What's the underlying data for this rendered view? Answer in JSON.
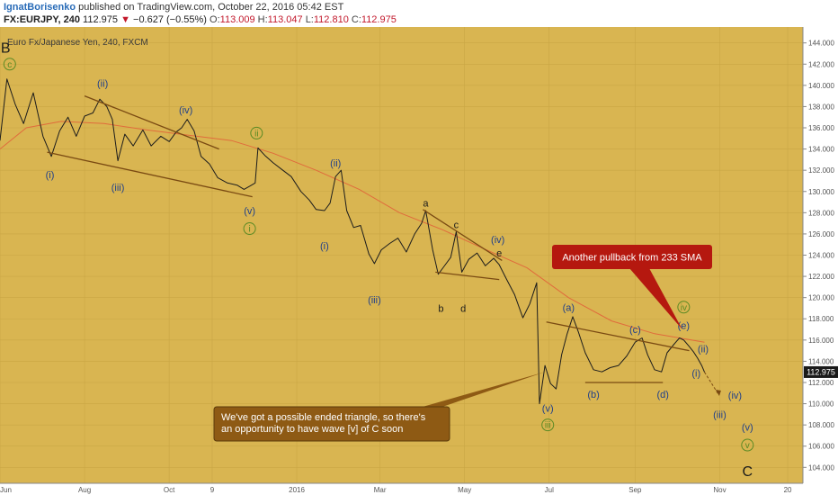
{
  "header": {
    "author": "IgnatBorisenko",
    "published": " published on TradingView.com, October 22, 2016 05:42 EST",
    "symbol": "FX:EURJPY, 240",
    "last": "112.975",
    "arrow": "▼",
    "change": "−0.627 (−0.55%)",
    "o_label": "O:",
    "o": "113.009",
    "h_label": "H:",
    "h": "113.047",
    "l_label": "L:",
    "l": "112.810",
    "c_label": "C:",
    "c": "112.975"
  },
  "colors": {
    "background": "#d9b551",
    "price_line": "#1c1c1c",
    "sma": "#e06b3c",
    "trendline": "#7a4a12",
    "wave_blue": "#1f3f8a",
    "wave_green": "#5a8a24",
    "callout_red": "#b5180f",
    "callout_brown": "#8e5a14"
  },
  "chart_data": {
    "type": "line",
    "title": "Euro Fx/Japanese Yen, 240, FXCM",
    "ylim": [
      102.5,
      145.5
    ],
    "yticks": [
      "144.000",
      "142.000",
      "140.000",
      "138.000",
      "136.000",
      "134.000",
      "132.000",
      "130.000",
      "128.000",
      "126.000",
      "124.000",
      "122.000",
      "120.000",
      "118.000",
      "116.000",
      "114.000",
      "112.000",
      "110.000",
      "108.000",
      "106.000",
      "104.000"
    ],
    "last_price_label": "112.975",
    "xlim": [
      "2015-06-01",
      "2016-12-31"
    ],
    "xticks": [
      {
        "date": "2015-06-01",
        "label": "Jun"
      },
      {
        "date": "2015-08-01",
        "label": "Aug"
      },
      {
        "date": "2015-10-01",
        "label": "Oct"
      },
      {
        "date": "2015-11-01",
        "label": "9"
      },
      {
        "date": "2016-01-01",
        "label": "2016"
      },
      {
        "date": "2016-03-01",
        "label": "Mar"
      },
      {
        "date": "2016-05-01",
        "label": "May"
      },
      {
        "date": "2016-07-01",
        "label": "Jul"
      },
      {
        "date": "2016-09-01",
        "label": "Sep"
      },
      {
        "date": "2016-11-01",
        "label": "Nov"
      },
      {
        "date": "2016-12-20",
        "label": "20"
      }
    ],
    "series": [
      {
        "type": "price",
        "points": [
          [
            "2015-06-01",
            134.8
          ],
          [
            "2015-06-06",
            140.6
          ],
          [
            "2015-06-12",
            138.2
          ],
          [
            "2015-06-18",
            136.4
          ],
          [
            "2015-06-25",
            139.3
          ],
          [
            "2015-07-02",
            135.2
          ],
          [
            "2015-07-08",
            133.3
          ],
          [
            "2015-07-14",
            135.7
          ],
          [
            "2015-07-20",
            137.0
          ],
          [
            "2015-07-26",
            135.2
          ],
          [
            "2015-08-01",
            137.1
          ],
          [
            "2015-08-07",
            137.4
          ],
          [
            "2015-08-12",
            138.7
          ],
          [
            "2015-08-17",
            138.0
          ],
          [
            "2015-08-21",
            136.8
          ],
          [
            "2015-08-25",
            132.9
          ],
          [
            "2015-08-30",
            135.4
          ],
          [
            "2015-09-05",
            134.3
          ],
          [
            "2015-09-12",
            135.8
          ],
          [
            "2015-09-18",
            134.3
          ],
          [
            "2015-09-25",
            135.2
          ],
          [
            "2015-10-01",
            134.7
          ],
          [
            "2015-10-06",
            135.6
          ],
          [
            "2015-10-10",
            136.0
          ],
          [
            "2015-10-14",
            136.8
          ],
          [
            "2015-10-19",
            135.7
          ],
          [
            "2015-10-24",
            133.3
          ],
          [
            "2015-10-30",
            132.6
          ],
          [
            "2015-11-05",
            131.3
          ],
          [
            "2015-11-12",
            130.8
          ],
          [
            "2015-11-19",
            130.6
          ],
          [
            "2015-11-24",
            130.2
          ],
          [
            "2015-11-28",
            130.5
          ],
          [
            "2015-12-02",
            130.8
          ],
          [
            "2015-12-04",
            134.1
          ],
          [
            "2015-12-09",
            133.4
          ],
          [
            "2015-12-15",
            132.7
          ],
          [
            "2015-12-22",
            132.0
          ],
          [
            "2015-12-28",
            131.4
          ],
          [
            "2016-01-04",
            130.0
          ],
          [
            "2016-01-10",
            129.2
          ],
          [
            "2016-01-15",
            128.3
          ],
          [
            "2016-01-21",
            128.2
          ],
          [
            "2016-01-25",
            128.9
          ],
          [
            "2016-01-29",
            131.4
          ],
          [
            "2016-02-02",
            132.0
          ],
          [
            "2016-02-06",
            128.2
          ],
          [
            "2016-02-11",
            126.6
          ],
          [
            "2016-02-16",
            126.8
          ],
          [
            "2016-02-22",
            124.1
          ],
          [
            "2016-02-26",
            123.2
          ],
          [
            "2016-03-02",
            124.5
          ],
          [
            "2016-03-08",
            125.1
          ],
          [
            "2016-03-14",
            125.6
          ],
          [
            "2016-03-20",
            124.3
          ],
          [
            "2016-03-26",
            126.0
          ],
          [
            "2016-03-31",
            127.0
          ],
          [
            "2016-04-03",
            128.2
          ],
          [
            "2016-04-08",
            124.5
          ],
          [
            "2016-04-12",
            122.2
          ],
          [
            "2016-04-16",
            122.9
          ],
          [
            "2016-04-21",
            123.8
          ],
          [
            "2016-04-25",
            126.2
          ],
          [
            "2016-04-29",
            122.4
          ],
          [
            "2016-05-04",
            123.6
          ],
          [
            "2016-05-10",
            124.2
          ],
          [
            "2016-05-16",
            123.0
          ],
          [
            "2016-05-22",
            123.7
          ],
          [
            "2016-05-26",
            123.1
          ],
          [
            "2016-05-31",
            121.8
          ],
          [
            "2016-06-06",
            120.3
          ],
          [
            "2016-06-12",
            118.1
          ],
          [
            "2016-06-17",
            119.4
          ],
          [
            "2016-06-22",
            121.4
          ],
          [
            "2016-06-24",
            110.0
          ],
          [
            "2016-06-28",
            113.6
          ],
          [
            "2016-07-02",
            111.9
          ],
          [
            "2016-07-06",
            111.4
          ],
          [
            "2016-07-10",
            114.6
          ],
          [
            "2016-07-14",
            116.6
          ],
          [
            "2016-07-18",
            118.2
          ],
          [
            "2016-07-22",
            116.8
          ],
          [
            "2016-07-27",
            114.8
          ],
          [
            "2016-08-02",
            113.2
          ],
          [
            "2016-08-08",
            113.0
          ],
          [
            "2016-08-14",
            113.4
          ],
          [
            "2016-08-20",
            113.6
          ],
          [
            "2016-08-26",
            114.5
          ],
          [
            "2016-09-01",
            115.8
          ],
          [
            "2016-09-06",
            116.2
          ],
          [
            "2016-09-10",
            114.6
          ],
          [
            "2016-09-15",
            113.2
          ],
          [
            "2016-09-20",
            113.0
          ],
          [
            "2016-09-24",
            114.8
          ],
          [
            "2016-09-29",
            115.6
          ],
          [
            "2016-10-03",
            116.2
          ],
          [
            "2016-10-06",
            116.0
          ],
          [
            "2016-10-10",
            115.4
          ],
          [
            "2016-10-13",
            114.9
          ],
          [
            "2016-10-16",
            114.3
          ],
          [
            "2016-10-19",
            113.6
          ],
          [
            "2016-10-21",
            112.98
          ]
        ]
      },
      {
        "type": "sma",
        "points": [
          [
            "2015-06-01",
            134.0
          ],
          [
            "2015-06-20",
            136.0
          ],
          [
            "2015-07-15",
            136.6
          ],
          [
            "2015-08-15",
            136.4
          ],
          [
            "2015-09-15",
            135.8
          ],
          [
            "2015-10-15",
            135.3
          ],
          [
            "2015-11-15",
            134.8
          ],
          [
            "2015-12-15",
            133.6
          ],
          [
            "2016-01-15",
            132.0
          ],
          [
            "2016-02-15",
            130.2
          ],
          [
            "2016-03-15",
            128.0
          ],
          [
            "2016-04-15",
            126.4
          ],
          [
            "2016-05-15",
            124.6
          ],
          [
            "2016-06-15",
            122.8
          ],
          [
            "2016-07-15",
            120.0
          ],
          [
            "2016-08-15",
            117.8
          ],
          [
            "2016-09-15",
            116.6
          ],
          [
            "2016-10-21",
            115.8
          ]
        ]
      }
    ],
    "trendlines": [
      {
        "from": [
          "2015-07-05",
          133.7
        ],
        "to": [
          "2015-11-30",
          129.5
        ]
      },
      {
        "from": [
          "2015-08-01",
          139.0
        ],
        "to": [
          "2015-11-06",
          134.0
        ]
      },
      {
        "from": [
          "2016-04-01",
          128.3
        ],
        "to": [
          "2016-05-28",
          123.5
        ]
      },
      {
        "from": [
          "2016-04-10",
          122.4
        ],
        "to": [
          "2016-05-26",
          121.7
        ]
      },
      {
        "from": [
          "2016-06-29",
          117.7
        ],
        "to": [
          "2016-10-10",
          115.0
        ]
      },
      {
        "from": [
          "2016-07-27",
          112.0
        ],
        "to": [
          "2016-09-21",
          112.0
        ]
      }
    ],
    "forecast": [
      [
        "2016-10-21",
        112.98
      ],
      [
        "2016-10-31",
        110.9
      ]
    ],
    "labels": [
      {
        "text": "B",
        "date": "2015-06-05",
        "price": 143.6,
        "style": "big"
      },
      {
        "text": "c",
        "date": "2015-06-08",
        "price": 142.0,
        "style": "green"
      },
      {
        "text": "(ii)",
        "date": "2015-08-14",
        "price": 140.2,
        "style": "blue"
      },
      {
        "text": "(iv)",
        "date": "2015-10-13",
        "price": 137.7,
        "style": "blue"
      },
      {
        "text": "ii",
        "date": "2015-12-03",
        "price": 135.5,
        "style": "green"
      },
      {
        "text": "(i)",
        "date": "2015-07-07",
        "price": 131.6,
        "style": "blue"
      },
      {
        "text": "(iii)",
        "date": "2015-08-25",
        "price": 130.4,
        "style": "blue"
      },
      {
        "text": "(v)",
        "date": "2015-11-28",
        "price": 128.2,
        "style": "blue"
      },
      {
        "text": "i",
        "date": "2015-11-28",
        "price": 126.5,
        "style": "green"
      },
      {
        "text": "(ii)",
        "date": "2016-01-29",
        "price": 132.7,
        "style": "blue"
      },
      {
        "text": "(i)",
        "date": "2016-01-21",
        "price": 124.9,
        "style": "blue"
      },
      {
        "text": "(iii)",
        "date": "2016-02-26",
        "price": 119.8,
        "style": "blue"
      },
      {
        "text": "a",
        "date": "2016-04-03",
        "price": 128.9,
        "style": "black"
      },
      {
        "text": "c",
        "date": "2016-04-25",
        "price": 126.9,
        "style": "black"
      },
      {
        "text": "e",
        "date": "2016-05-26",
        "price": 124.2,
        "style": "black"
      },
      {
        "text": "(iv)",
        "date": "2016-05-25",
        "price": 125.5,
        "style": "blue"
      },
      {
        "text": "b",
        "date": "2016-04-14",
        "price": 119.0,
        "style": "black"
      },
      {
        "text": "d",
        "date": "2016-04-30",
        "price": 119.0,
        "style": "black"
      },
      {
        "text": "(v)",
        "date": "2016-06-30",
        "price": 109.6,
        "style": "blue"
      },
      {
        "text": "iii",
        "date": "2016-06-30",
        "price": 108.0,
        "style": "green"
      },
      {
        "text": "(a)",
        "date": "2016-07-15",
        "price": 119.1,
        "style": "blue"
      },
      {
        "text": "(b)",
        "date": "2016-08-02",
        "price": 110.9,
        "style": "blue"
      },
      {
        "text": "(c)",
        "date": "2016-09-01",
        "price": 117.0,
        "style": "blue"
      },
      {
        "text": "(d)",
        "date": "2016-09-21",
        "price": 110.9,
        "style": "blue"
      },
      {
        "text": "iv",
        "date": "2016-10-06",
        "price": 119.1,
        "style": "green"
      },
      {
        "text": "(e)",
        "date": "2016-10-06",
        "price": 117.4,
        "style": "blue"
      },
      {
        "text": "(ii)",
        "date": "2016-10-20",
        "price": 115.2,
        "style": "blue"
      },
      {
        "text": "(i)",
        "date": "2016-10-15",
        "price": 112.9,
        "style": "blue"
      },
      {
        "text": "(iv)",
        "date": "2016-11-12",
        "price": 110.8,
        "style": "blue"
      },
      {
        "text": "(iii)",
        "date": "2016-11-01",
        "price": 109.0,
        "style": "blue"
      },
      {
        "text": "(v)",
        "date": "2016-11-21",
        "price": 107.8,
        "style": "blue"
      },
      {
        "text": "v",
        "date": "2016-11-21",
        "price": 106.1,
        "style": "green"
      },
      {
        "text": "C",
        "date": "2016-11-21",
        "price": 103.7,
        "style": "big"
      }
    ],
    "callouts": [
      {
        "text": "Another pullback from 233 SMA",
        "color": "red"
      },
      {
        "text": "We've got a possible ended triangle, so there's an opportunity to have wave [v] of C soon",
        "color": "brown"
      }
    ]
  }
}
